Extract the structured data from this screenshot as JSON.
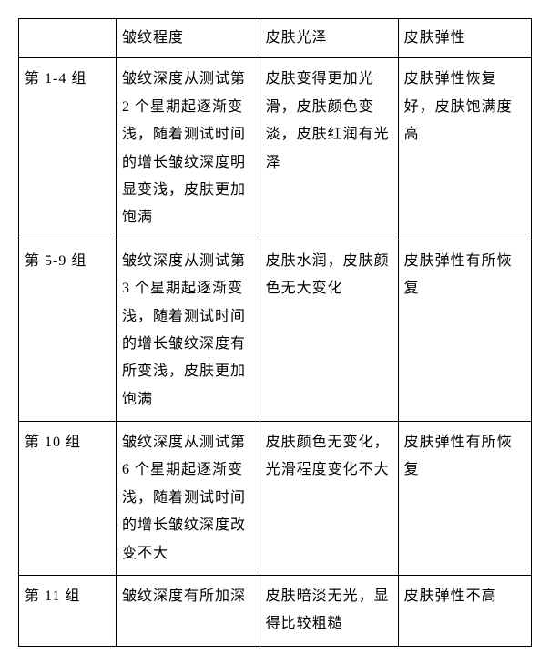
{
  "table": {
    "columns": [
      "",
      "皱纹程度",
      "皮肤光泽",
      "皮肤弹性"
    ],
    "column_widths_pct": [
      19,
      28,
      27,
      26
    ],
    "border_color": "#000000",
    "background_color": "#ffffff",
    "font_family": "SimSun",
    "font_size_pt": 16,
    "line_height": 1.9,
    "text_align": "left",
    "rows": [
      {
        "group": "第 1-4 组",
        "wrinkle": "皱纹深度从测试第 2 个星期起逐渐变浅，随着测试时间的增长皱纹深度明显变浅，皮肤更加饱满",
        "gloss": "皮肤变得更加光滑，皮肤颜色变淡，皮肤红润有光泽",
        "elastic": "皮肤弹性恢复好，皮肤饱满度高"
      },
      {
        "group": "第 5-9 组",
        "wrinkle": "皱纹深度从测试第 3 个星期起逐渐变浅，随着测试时间的增长皱纹深度有所变浅，皮肤更加饱满",
        "gloss": "皮肤水润，皮肤颜色无大变化",
        "elastic": "皮肤弹性有所恢复"
      },
      {
        "group": "第 10 组",
        "wrinkle": "皱纹深度从测试第 6 个星期起逐渐变浅，随着测试时间的增长皱纹深度改变不大",
        "gloss": "皮肤颜色无变化，光滑程度变化不大",
        "elastic": "皮肤弹性有所恢复"
      },
      {
        "group": "第 11 组",
        "wrinkle": "皱纹深度有所加深",
        "gloss": "皮肤暗淡无光，显得比较粗糙",
        "elastic": "皮肤弹性不高"
      }
    ]
  }
}
